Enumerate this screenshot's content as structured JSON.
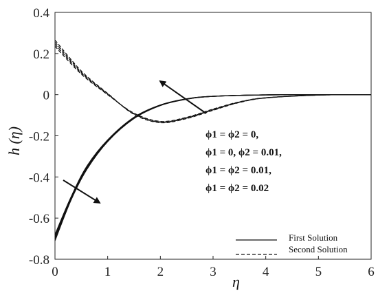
{
  "chart_data": {
    "type": "line",
    "xlabel": "η",
    "ylabel": "h (η)",
    "xlim": [
      0,
      6
    ],
    "ylim": [
      -0.8,
      0.4
    ],
    "xticks": [
      "0",
      "1",
      "2",
      "3",
      "4",
      "5",
      "6"
    ],
    "yticks": [
      "0.4",
      "0.2",
      "0",
      "-0.2",
      "-0.4",
      "-0.6",
      "-0.8"
    ],
    "grid": false,
    "legend_position": "bottom-right",
    "legend": [
      {
        "label": "First Solution",
        "style": "solid"
      },
      {
        "label": "Second Solution",
        "style": "dashed"
      }
    ],
    "annotations": [
      "ϕ1 = ϕ2 = 0,",
      "ϕ1 = 0, ϕ2 = 0.01,",
      "ϕ1 = ϕ2 = 0.01,",
      "ϕ1 = ϕ2 = 0.02"
    ],
    "series": [
      {
        "style": "solid",
        "x": [
          0,
          0.3,
          0.6,
          1.0,
          1.5,
          2.0,
          2.5,
          3.0,
          4.0,
          5.0,
          6.0
        ],
        "values": [
          -0.68,
          -0.5,
          -0.35,
          -0.22,
          -0.11,
          -0.05,
          -0.02,
          -0.008,
          -0.001,
          0,
          0
        ]
      },
      {
        "style": "solid",
        "x": [
          0,
          0.3,
          0.6,
          1.0,
          1.5,
          2.0,
          2.5,
          3.0,
          4.0,
          5.0,
          6.0
        ],
        "values": [
          -0.69,
          -0.505,
          -0.355,
          -0.222,
          -0.112,
          -0.051,
          -0.021,
          -0.008,
          -0.001,
          0,
          0
        ]
      },
      {
        "style": "solid",
        "x": [
          0,
          0.3,
          0.6,
          1.0,
          1.5,
          2.0,
          2.5,
          3.0,
          4.0,
          5.0,
          6.0
        ],
        "values": [
          -0.7,
          -0.51,
          -0.36,
          -0.225,
          -0.114,
          -0.052,
          -0.021,
          -0.008,
          -0.001,
          0,
          0
        ]
      },
      {
        "style": "solid",
        "x": [
          0,
          0.3,
          0.6,
          1.0,
          1.5,
          2.0,
          2.5,
          3.0,
          4.0,
          5.0,
          6.0
        ],
        "values": [
          -0.71,
          -0.515,
          -0.365,
          -0.228,
          -0.116,
          -0.053,
          -0.022,
          -0.008,
          -0.001,
          0,
          0
        ]
      },
      {
        "style": "dashed",
        "x": [
          0,
          0.5,
          1.0,
          1.5,
          2.0,
          2.5,
          3.0,
          3.5,
          4.0,
          5.0,
          6.0
        ],
        "values": [
          0.235,
          0.1,
          0.0,
          -0.09,
          -0.13,
          -0.11,
          -0.07,
          -0.035,
          -0.015,
          -0.002,
          0
        ]
      },
      {
        "style": "dashed",
        "x": [
          0,
          0.5,
          1.0,
          1.5,
          2.0,
          2.5,
          3.0,
          3.5,
          4.0,
          5.0,
          6.0
        ],
        "values": [
          0.245,
          0.105,
          0.002,
          -0.092,
          -0.132,
          -0.112,
          -0.072,
          -0.036,
          -0.015,
          -0.002,
          0
        ]
      },
      {
        "style": "dashed",
        "x": [
          0,
          0.5,
          1.0,
          1.5,
          2.0,
          2.5,
          3.0,
          3.5,
          4.0,
          5.0,
          6.0
        ],
        "values": [
          0.255,
          0.11,
          0.004,
          -0.094,
          -0.134,
          -0.114,
          -0.074,
          -0.037,
          -0.016,
          -0.002,
          0
        ]
      },
      {
        "style": "dashed",
        "x": [
          0,
          0.5,
          1.0,
          1.5,
          2.0,
          2.5,
          3.0,
          3.5,
          4.0,
          5.0,
          6.0
        ],
        "values": [
          0.265,
          0.115,
          0.006,
          -0.096,
          -0.136,
          -0.116,
          -0.076,
          -0.038,
          -0.016,
          -0.002,
          0
        ]
      }
    ]
  }
}
